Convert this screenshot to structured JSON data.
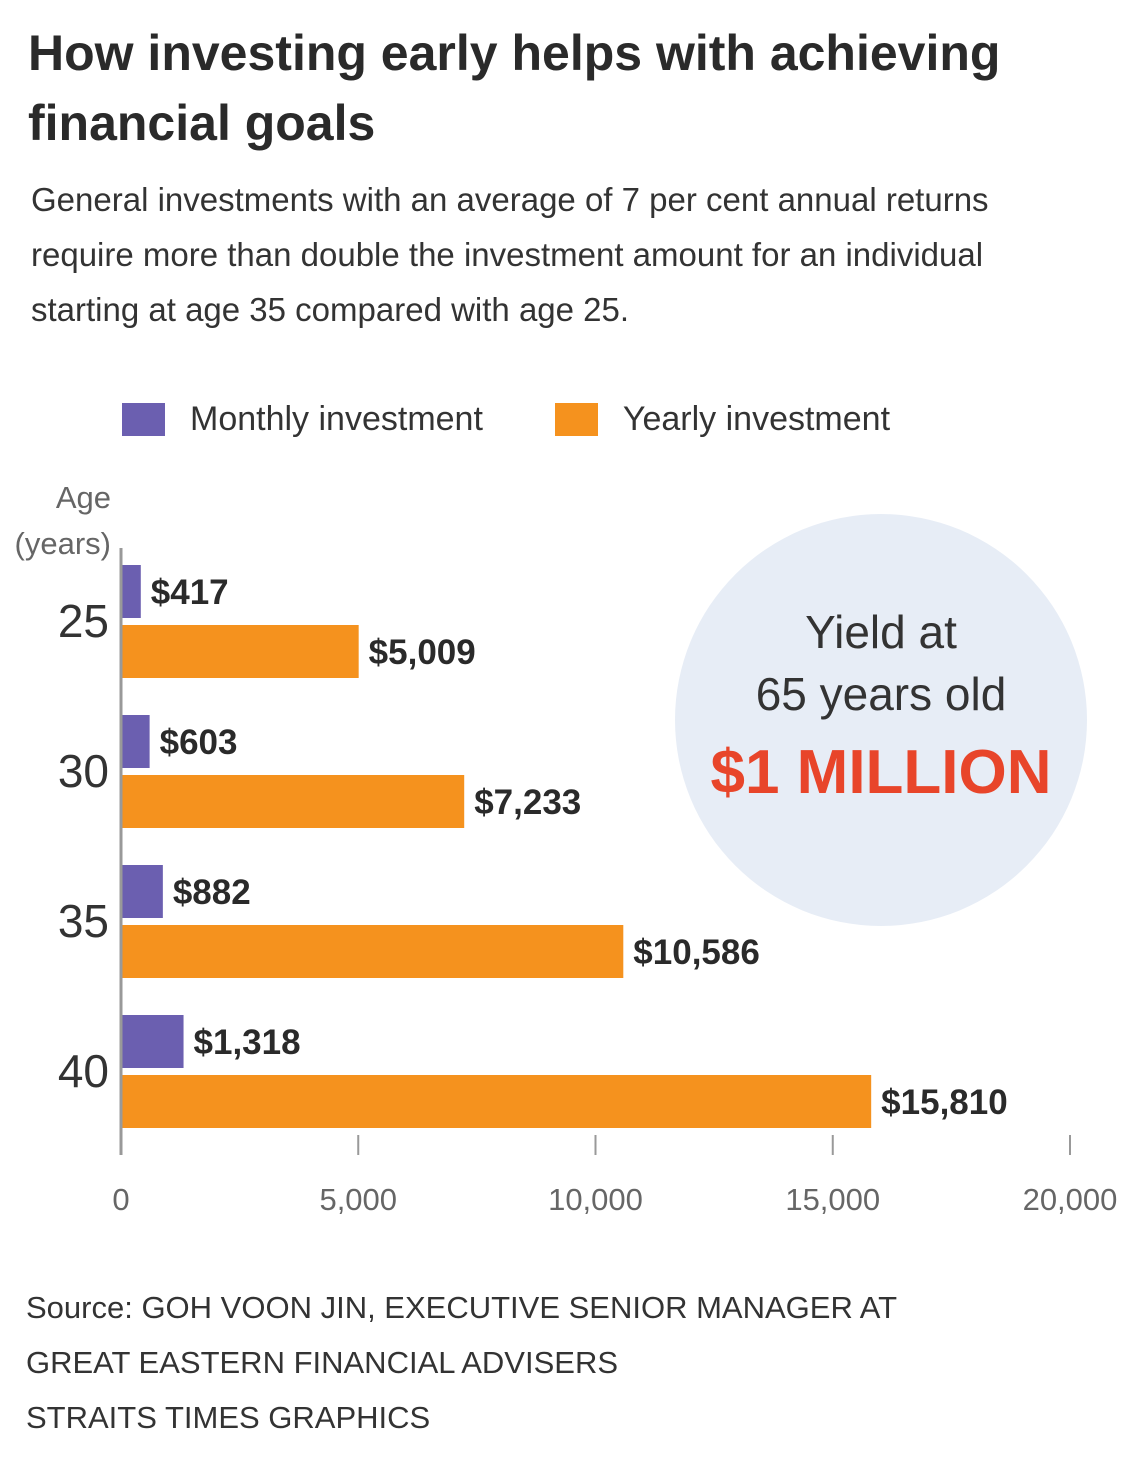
{
  "title": "How investing early helps with achieving financial goals",
  "subtitle": "General investments with an average of 7 per cent annual returns require more than double the investment amount for an individual starting at age 35 compared with age 25.",
  "colors": {
    "monthly": "#6b5fb0",
    "yearly": "#f5921e",
    "circle": "#e7edf6",
    "highlight": "#e8452a"
  },
  "callout": {
    "line1": "Yield at",
    "line2": "65 years old",
    "amount": "$1 MILLION"
  },
  "chart_data": {
    "type": "bar",
    "orientation": "horizontal",
    "ylabel": "Age (years)",
    "ylabel_line1": "Age",
    "ylabel_line2": "(years)",
    "categories": [
      "25",
      "30",
      "35",
      "40"
    ],
    "series": [
      {
        "name": "Monthly investment",
        "values": [
          417,
          603,
          882,
          1318
        ],
        "labels": [
          "$417",
          "$603",
          "$882",
          "$1,318"
        ]
      },
      {
        "name": "Yearly investment",
        "values": [
          5009,
          7233,
          10586,
          15810
        ],
        "labels": [
          "$5,009",
          "$7,233",
          "$10,586",
          "$15,810"
        ]
      }
    ],
    "xlim": [
      0,
      20000
    ],
    "xticks": [
      0,
      5000,
      10000,
      15000,
      20000
    ],
    "xtick_labels": [
      "0",
      "5,000",
      "10,000",
      "15,000",
      "20,000"
    ],
    "legend": "top"
  },
  "footer": {
    "source_line1": "Source: GOH VOON JIN, EXECUTIVE SENIOR MANAGER AT",
    "source_line2": "GREAT EASTERN FINANCIAL ADVISERS",
    "credit": "STRAITS TIMES GRAPHICS"
  }
}
